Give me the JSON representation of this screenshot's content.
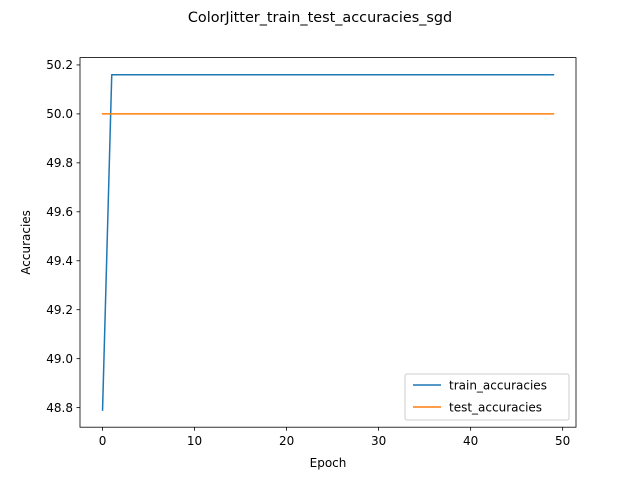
{
  "chart_data": {
    "type": "line",
    "title": "ColorJitter_train_test_accuracies_sgd",
    "xlabel": "Epoch",
    "ylabel": "Accuracies",
    "xlim": [
      -2.45,
      51.45
    ],
    "ylim": [
      48.72,
      50.23
    ],
    "xticks": [
      0,
      10,
      20,
      30,
      40,
      50
    ],
    "yticks": [
      48.8,
      49.0,
      49.2,
      49.4,
      49.6,
      49.8,
      50.0,
      50.2
    ],
    "grid": false,
    "legend_position": "lower-right",
    "series": [
      {
        "name": "train_accuracies",
        "color": "#1f77b4",
        "x": [
          0,
          1,
          49
        ],
        "y": [
          48.79,
          50.16,
          50.16
        ]
      },
      {
        "name": "test_accuracies",
        "color": "#ff7f0e",
        "x": [
          0,
          49
        ],
        "y": [
          50.0,
          50.0
        ]
      }
    ]
  }
}
